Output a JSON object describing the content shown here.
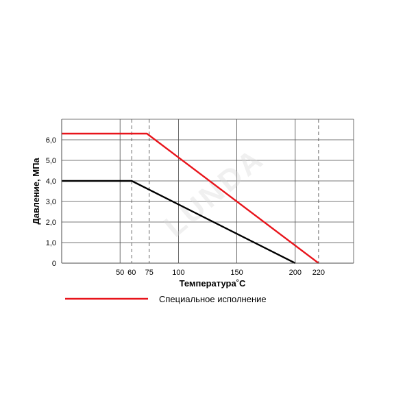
{
  "chart_data": {
    "type": "line",
    "xlabel": "Температура˚С",
    "ylabel": "Давление, МПа",
    "xlim": [
      0,
      250
    ],
    "ylim": [
      0,
      7
    ],
    "x_ticks": [
      {
        "value": 50,
        "label": "50"
      },
      {
        "value": 60,
        "label": "60"
      },
      {
        "value": 75,
        "label": "75"
      },
      {
        "value": 100,
        "label": "100"
      },
      {
        "value": 150,
        "label": "150"
      },
      {
        "value": 200,
        "label": "200"
      },
      {
        "value": 220,
        "label": "220"
      }
    ],
    "y_ticks": [
      {
        "value": 0,
        "label": "0"
      },
      {
        "value": 1,
        "label": "1,0"
      },
      {
        "value": 2,
        "label": "2,0"
      },
      {
        "value": 3,
        "label": "3,0"
      },
      {
        "value": 4,
        "label": "4,0"
      },
      {
        "value": 5,
        "label": "5,0"
      },
      {
        "value": 6,
        "label": "6,0"
      }
    ],
    "vertical_solid_lines": [
      50,
      100,
      150,
      200
    ],
    "vertical_dashed_lines": [
      60,
      75,
      220
    ],
    "grid": true,
    "series": [
      {
        "name": "",
        "color": "#000000",
        "points": [
          [
            0,
            4.0
          ],
          [
            60,
            4.0
          ],
          [
            200,
            0
          ]
        ]
      },
      {
        "name": "Специальное исполнение",
        "color": "#e8141b",
        "points": [
          [
            0,
            6.3
          ],
          [
            73,
            6.3
          ],
          [
            220,
            0
          ]
        ]
      }
    ],
    "legend": [
      {
        "label": "Специальное исполнение",
        "color": "#e8141b"
      }
    ],
    "legend_position": "bottom-left",
    "watermark": "LUNDA"
  }
}
